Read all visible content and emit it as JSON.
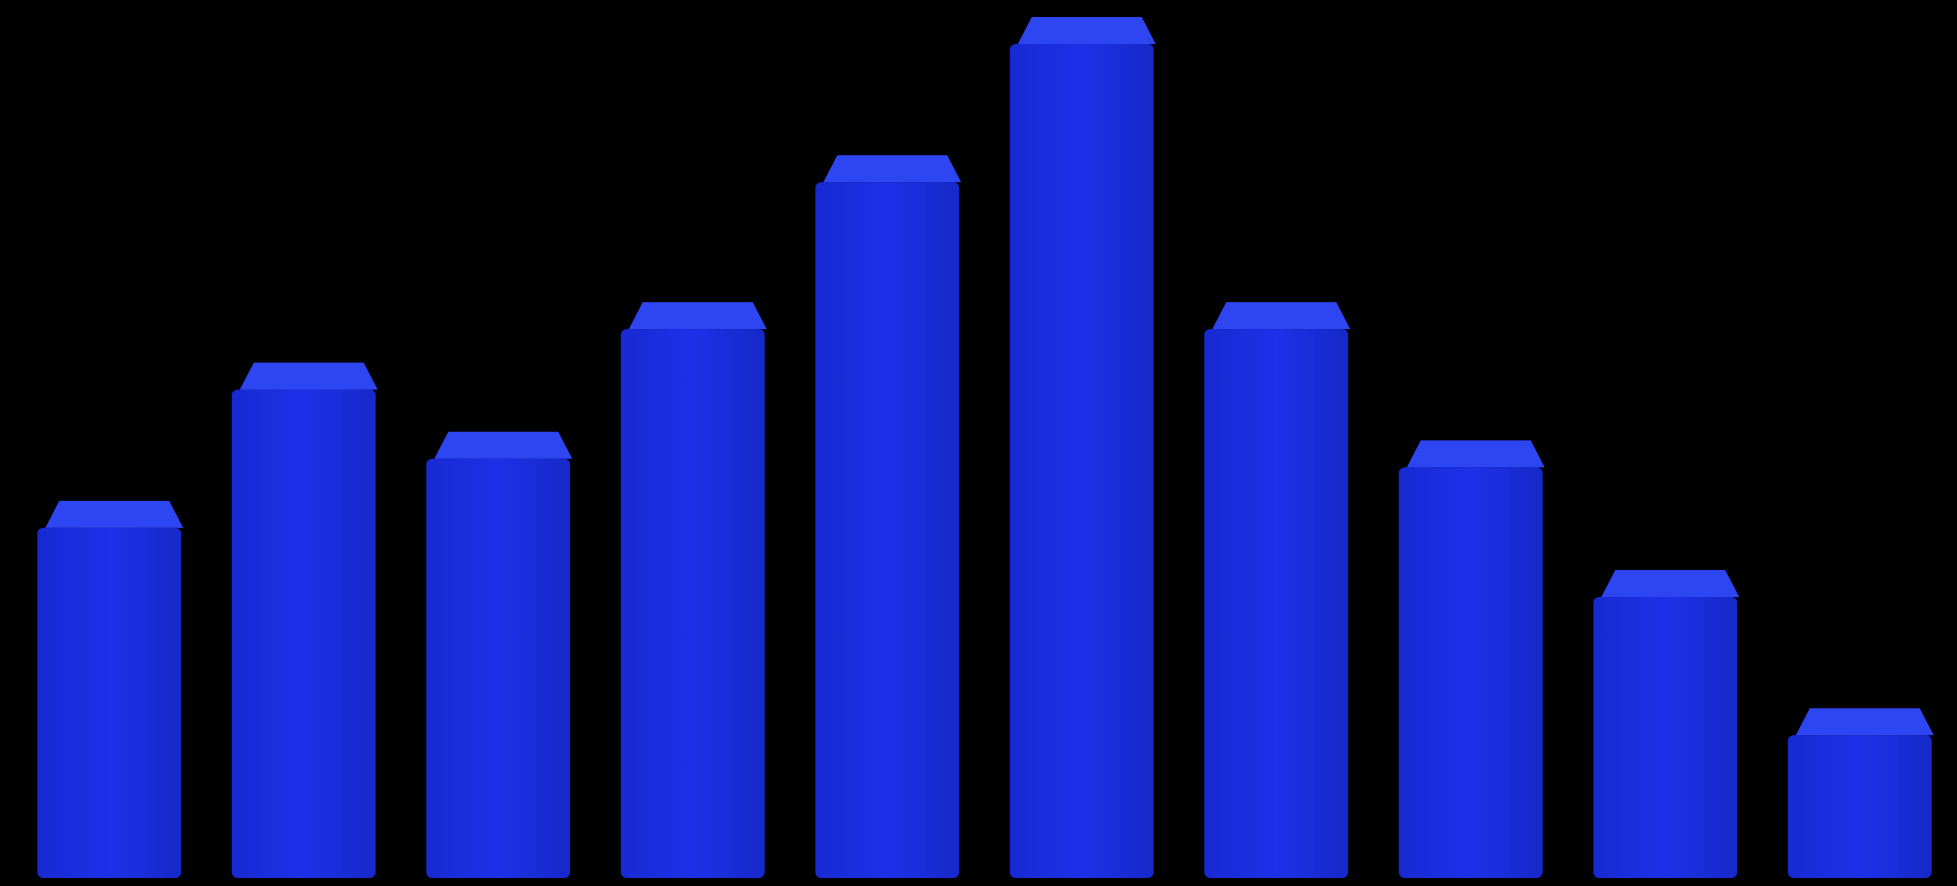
{
  "chart_data": {
    "type": "bar3d",
    "categories": [
      null,
      null,
      null,
      null,
      null,
      null,
      null,
      null,
      null,
      null
    ],
    "values": [
      44,
      60,
      52,
      67,
      84,
      100,
      67,
      51,
      36,
      20
    ],
    "color": "#1b2fe0",
    "ylim": [
      0,
      100
    ]
  }
}
